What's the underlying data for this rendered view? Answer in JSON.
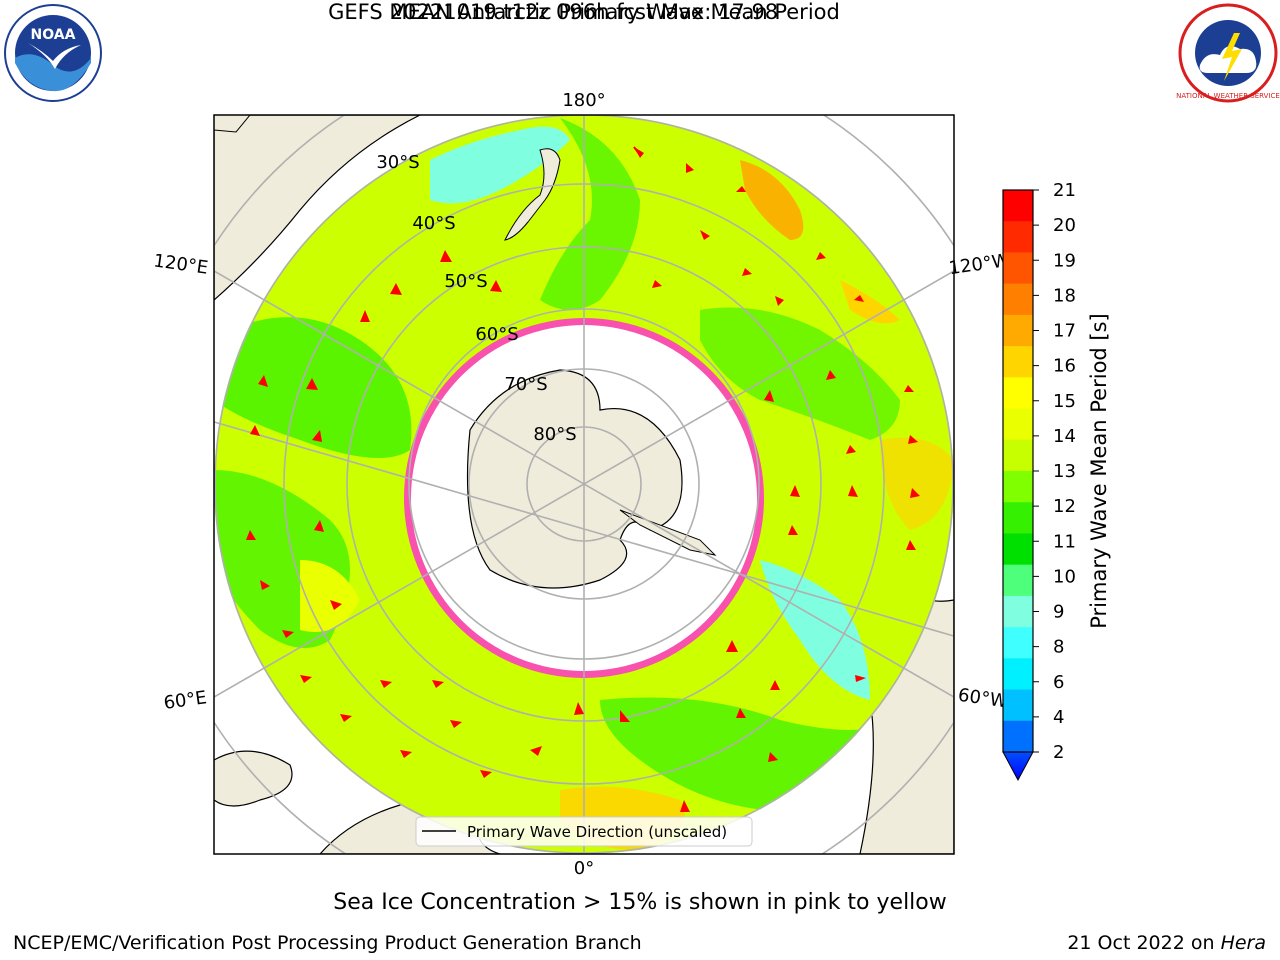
{
  "title_line1": "GEFS MEAN Antarctic Primary Wave Mean Period",
  "title_line2": "20221019 t12z 096h fcst   Max: 17.98",
  "lon_labels": {
    "top": "180°",
    "bottom": "0°",
    "upper_left": "120°E",
    "upper_right": "120°W",
    "lower_left": "60°E",
    "lower_right": "60°W"
  },
  "lat_labels": [
    "30°S",
    "40°S",
    "50°S",
    "60°S",
    "70°S",
    "80°S"
  ],
  "legend_label": "Primary Wave Direction (unscaled)",
  "colorbar": {
    "label": "Primary Wave Mean Period [s]",
    "ticks": [
      "21",
      "20",
      "19",
      "18",
      "17",
      "16",
      "15",
      "14",
      "13",
      "12",
      "11",
      "10",
      "9",
      "8",
      "6",
      "4",
      "2"
    ],
    "colors_top_to_bottom": [
      "#ff0000",
      "#ff2a00",
      "#ff5500",
      "#ff8000",
      "#ffaa00",
      "#ffd500",
      "#ffff00",
      "#eaff00",
      "#c8ff00",
      "#7fff00",
      "#35f000",
      "#00e000",
      "#4dff7a",
      "#80ffe0",
      "#40ffff",
      "#00f0ff",
      "#00c0ff",
      "#0070ff"
    ],
    "extend_color": "#0000ff"
  },
  "note": "Sea Ice Concentration > 15% is shown in pink to yellow",
  "branch": "NCEP/EMC/Verification Post Processing Product Generation Branch",
  "date": "21 Oct 2022 on ",
  "host": "Hera",
  "logos": {
    "left": "NOAA",
    "right": "NATIONAL WEATHER SERVICE"
  },
  "colors": {
    "land": "#efecdc",
    "ocean_base": "#ccff00",
    "ice": "#ffffff",
    "ice_edge": "#ff33cc",
    "arrow": "#ff0000",
    "grid": "#b0b0b0"
  }
}
